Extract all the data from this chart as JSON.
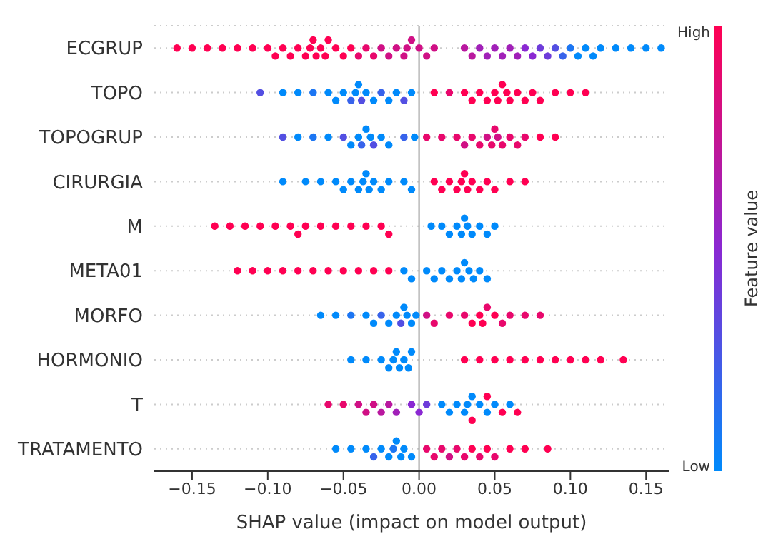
{
  "chart_data": {
    "type": "scatter",
    "orientation": "horizontal",
    "xlabel": "SHAP value (impact on model output)",
    "clabel": "Feature value",
    "annotations": [
      "High",
      "Low"
    ],
    "categories": [
      "ECGRUP",
      "TOPO",
      "TOPOGRUP",
      "CIRURGIA",
      "M",
      "META01",
      "MORFO",
      "HORMONIO",
      "T",
      "TRATAMENTO"
    ],
    "xlim": [
      -0.175,
      0.165
    ],
    "xticks": [
      {
        "value": -0.15,
        "label": "−0.15"
      },
      {
        "value": -0.1,
        "label": "−0.10"
      },
      {
        "value": -0.05,
        "label": "−0.05"
      },
      {
        "value": 0,
        "label": "0.00"
      },
      {
        "value": 0.05,
        "label": "0.05"
      },
      {
        "value": 0.1,
        "label": "0.10"
      },
      {
        "value": 0.15,
        "label": "0.15"
      }
    ],
    "grid": "y",
    "marker": "circle",
    "ref_lines": [
      {
        "axis": "x",
        "value": 0,
        "color": "#999999"
      }
    ],
    "series": [
      {
        "x": [
          "ECGRUP",
          "ECGRUP",
          "ECGRUP",
          "ECGRUP",
          "ECGRUP",
          "ECGRUP",
          "ECGRUP",
          "ECGRUP",
          "ECGRUP",
          "ECGRUP",
          "ECGRUP",
          "ECGRUP",
          "ECGRUP",
          "ECGRUP",
          "ECGRUP",
          "ECGRUP",
          "ECGRUP",
          "ECGRUP",
          "ECGRUP",
          "ECGRUP",
          "ECGRUP",
          "ECGRUP",
          "ECGRUP",
          "ECGRUP",
          "ECGRUP",
          "ECGRUP",
          "ECGRUP",
          "ECGRUP",
          "ECGRUP",
          "ECGRUP",
          "ECGRUP",
          "ECGRUP",
          "ECGRUP",
          "ECGRUP",
          "ECGRUP",
          "ECGRUP",
          "ECGRUP",
          "ECGRUP",
          "ECGRUP",
          "ECGRUP",
          "ECGRUP",
          "ECGRUP",
          "ECGRUP",
          "ECGRUP",
          "ECGRUP",
          "ECGRUP",
          "ECGRUP",
          "ECGRUP",
          "ECGRUP",
          "ECGRUP",
          "ECGRUP",
          "ECGRUP",
          "ECGRUP",
          "ECGRUP",
          "ECGRUP",
          "ECGRUP"
        ],
        "values": [
          -0.16,
          -0.15,
          -0.14,
          -0.13,
          -0.12,
          -0.11,
          -0.1,
          -0.095,
          -0.09,
          -0.085,
          -0.08,
          -0.075,
          -0.072,
          -0.07,
          -0.068,
          -0.065,
          -0.062,
          -0.06,
          -0.055,
          -0.05,
          -0.045,
          -0.04,
          -0.035,
          -0.03,
          -0.025,
          -0.02,
          -0.015,
          -0.01,
          -0.008,
          -0.005,
          0,
          0.005,
          0.01,
          0.03,
          0.035,
          0.04,
          0.045,
          0.05,
          0.055,
          0.06,
          0.065,
          0.07,
          0.075,
          0.08,
          0.085,
          0.09,
          0.095,
          0.1,
          0.105,
          0.11,
          0.115,
          0.12,
          0.13,
          0.14,
          0.15,
          0.16
        ],
        "colors": [
          "#ff0052",
          "#ff0052",
          "#ff0052",
          "#ff0052",
          "#ff0052",
          "#ff0052",
          "#ff0052",
          "#ff0052",
          "#ff0052",
          "#ff0052",
          "#ff0052",
          "#ff0052",
          "#ff0052",
          "#ff0052",
          "#ff0052",
          "#ff0052",
          "#ff0052",
          "#ff0052",
          "#ff0052",
          "#ff0052",
          "#ff0052",
          "#e8086c",
          "#e8086c",
          "#e8086c",
          "#d01085",
          "#d01085",
          "#d01085",
          "#d01085",
          "#d01085",
          "#d01085",
          "#d01085",
          "#d01085",
          "#d01085",
          "#b9189f",
          "#b9189f",
          "#a120b8",
          "#a120b8",
          "#a120b8",
          "#a120b8",
          "#a120b8",
          "#a120b8",
          "#8a28d2",
          "#8a28d2",
          "#6e3cda",
          "#6e3cda",
          "#534fe2",
          "#3763eb",
          "#1c76f3",
          "#008afb",
          "#008afb",
          "#008afb",
          "#008afb",
          "#008afb",
          "#008afb",
          "#008afb",
          "#008afb"
        ]
      },
      {
        "x": [
          "TOPO",
          "TOPO",
          "TOPO",
          "TOPO",
          "TOPO",
          "TOPO",
          "TOPO",
          "TOPO",
          "TOPO",
          "TOPO",
          "TOPO",
          "TOPO",
          "TOPO",
          "TOPO",
          "TOPO",
          "TOPO",
          "TOPO",
          "TOPO",
          "TOPO",
          "TOPO",
          "TOPO",
          "TOPO",
          "TOPO",
          "TOPO",
          "TOPO",
          "TOPO",
          "TOPO",
          "TOPO",
          "TOPO",
          "TOPO",
          "TOPO",
          "TOPO",
          "TOPO",
          "TOPO",
          "TOPO",
          "TOPO"
        ],
        "values": [
          -0.105,
          -0.09,
          -0.08,
          -0.07,
          -0.06,
          -0.055,
          -0.05,
          -0.045,
          -0.042,
          -0.04,
          -0.038,
          -0.035,
          -0.03,
          -0.025,
          -0.02,
          -0.015,
          -0.01,
          -0.005,
          0.01,
          0.02,
          0.03,
          0.035,
          0.04,
          0.045,
          0.05,
          0.052,
          0.055,
          0.058,
          0.06,
          0.065,
          0.07,
          0.075,
          0.08,
          0.09,
          0.1,
          0.11
        ],
        "colors": [
          "#534fe2",
          "#008afb",
          "#008afb",
          "#1c76f3",
          "#008afb",
          "#008afb",
          "#008afb",
          "#3763eb",
          "#008afb",
          "#008afb",
          "#534fe2",
          "#008afb",
          "#008afb",
          "#3763eb",
          "#008afb",
          "#008afb",
          "#534fe2",
          "#008afb",
          "#ff0052",
          "#e8086c",
          "#ff0052",
          "#ff0052",
          "#ff0052",
          "#ff0052",
          "#ff0052",
          "#ff0052",
          "#ff0052",
          "#ff0052",
          "#ff0052",
          "#ff0052",
          "#ff0052",
          "#ff0052",
          "#ff0052",
          "#ff0052",
          "#ff0052",
          "#ff0052"
        ]
      },
      {
        "x": [
          "TOPOGRUP",
          "TOPOGRUP",
          "TOPOGRUP",
          "TOPOGRUP",
          "TOPOGRUP",
          "TOPOGRUP",
          "TOPOGRUP",
          "TOPOGRUP",
          "TOPOGRUP",
          "TOPOGRUP",
          "TOPOGRUP",
          "TOPOGRUP",
          "TOPOGRUP",
          "TOPOGRUP",
          "TOPOGRUP",
          "TOPOGRUP",
          "TOPOGRUP",
          "TOPOGRUP",
          "TOPOGRUP",
          "TOPOGRUP",
          "TOPOGRUP",
          "TOPOGRUP",
          "TOPOGRUP",
          "TOPOGRUP",
          "TOPOGRUP",
          "TOPOGRUP",
          "TOPOGRUP",
          "TOPOGRUP",
          "TOPOGRUP",
          "TOPOGRUP",
          "TOPOGRUP"
        ],
        "values": [
          -0.09,
          -0.08,
          -0.07,
          -0.06,
          -0.05,
          -0.045,
          -0.04,
          -0.038,
          -0.035,
          -0.032,
          -0.03,
          -0.025,
          -0.02,
          -0.01,
          -0.003,
          0.005,
          0.015,
          0.025,
          0.03,
          0.035,
          0.04,
          0.045,
          0.048,
          0.05,
          0.052,
          0.055,
          0.06,
          0.065,
          0.07,
          0.08,
          0.09
        ],
        "colors": [
          "#534fe2",
          "#008afb",
          "#1c76f3",
          "#008afb",
          "#534fe2",
          "#008afb",
          "#008afb",
          "#3763eb",
          "#008afb",
          "#008afb",
          "#534fe2",
          "#008afb",
          "#008afb",
          "#3763eb",
          "#008afb",
          "#e8086c",
          "#e8086c",
          "#e8086c",
          "#d01085",
          "#e8086c",
          "#e8086c",
          "#d01085",
          "#e8086c",
          "#e8086c",
          "#d01085",
          "#e8086c",
          "#e8086c",
          "#e8086c",
          "#e8086c",
          "#ff0052",
          "#ff0052"
        ]
      },
      {
        "x": [
          "CIRURGIA",
          "CIRURGIA",
          "CIRURGIA",
          "CIRURGIA",
          "CIRURGIA",
          "CIRURGIA",
          "CIRURGIA",
          "CIRURGIA",
          "CIRURGIA",
          "CIRURGIA",
          "CIRURGIA",
          "CIRURGIA",
          "CIRURGIA",
          "CIRURGIA",
          "CIRURGIA",
          "CIRURGIA",
          "CIRURGIA",
          "CIRURGIA",
          "CIRURGIA",
          "CIRURGIA",
          "CIRURGIA",
          "CIRURGIA",
          "CIRURGIA",
          "CIRURGIA",
          "CIRURGIA",
          "CIRURGIA",
          "CIRURGIA",
          "CIRURGIA"
        ],
        "values": [
          -0.09,
          -0.075,
          -0.065,
          -0.055,
          -0.05,
          -0.045,
          -0.04,
          -0.037,
          -0.035,
          -0.033,
          -0.03,
          -0.025,
          -0.02,
          -0.01,
          -0.005,
          0.01,
          0.015,
          0.02,
          0.025,
          0.028,
          0.03,
          0.032,
          0.035,
          0.04,
          0.045,
          0.05,
          0.06,
          0.07
        ],
        "colors": [
          "#008afb",
          "#008afb",
          "#008afb",
          "#008afb",
          "#008afb",
          "#008afb",
          "#008afb",
          "#008afb",
          "#008afb",
          "#008afb",
          "#008afb",
          "#008afb",
          "#008afb",
          "#008afb",
          "#008afb",
          "#ff0052",
          "#ff0052",
          "#ff0052",
          "#ff0052",
          "#ff0052",
          "#ff0052",
          "#ff0052",
          "#ff0052",
          "#ff0052",
          "#ff0052",
          "#ff0052",
          "#ff0052",
          "#ff0052"
        ]
      },
      {
        "x": [
          "M",
          "M",
          "M",
          "M",
          "M",
          "M",
          "M",
          "M",
          "M",
          "M",
          "M",
          "M",
          "M",
          "M",
          "M",
          "M",
          "M",
          "M",
          "M",
          "M",
          "M",
          "M",
          "M",
          "M",
          "M"
        ],
        "values": [
          -0.135,
          -0.125,
          -0.115,
          -0.105,
          -0.095,
          -0.085,
          -0.08,
          -0.075,
          -0.065,
          -0.055,
          -0.045,
          -0.035,
          -0.025,
          -0.02,
          0.008,
          0.015,
          0.02,
          0.025,
          0.028,
          0.03,
          0.032,
          0.035,
          0.04,
          0.045,
          0.05
        ],
        "colors": [
          "#ff0052",
          "#ff0052",
          "#ff0052",
          "#ff0052",
          "#ff0052",
          "#ff0052",
          "#ff0052",
          "#ff0052",
          "#ff0052",
          "#ff0052",
          "#ff0052",
          "#ff0052",
          "#ff0052",
          "#ff0052",
          "#008afb",
          "#008afb",
          "#008afb",
          "#008afb",
          "#008afb",
          "#008afb",
          "#008afb",
          "#008afb",
          "#008afb",
          "#008afb",
          "#008afb"
        ]
      },
      {
        "x": [
          "META01",
          "META01",
          "META01",
          "META01",
          "META01",
          "META01",
          "META01",
          "META01",
          "META01",
          "META01",
          "META01",
          "META01",
          "META01",
          "META01",
          "META01",
          "META01",
          "META01",
          "META01",
          "META01",
          "META01",
          "META01",
          "META01",
          "META01",
          "META01"
        ],
        "values": [
          -0.12,
          -0.11,
          -0.1,
          -0.09,
          -0.08,
          -0.07,
          -0.06,
          -0.05,
          -0.04,
          -0.03,
          -0.02,
          -0.01,
          -0.005,
          0.005,
          0.01,
          0.015,
          0.02,
          0.025,
          0.028,
          0.03,
          0.033,
          0.036,
          0.04,
          0.045
        ],
        "colors": [
          "#ff0052",
          "#ff0052",
          "#ff0052",
          "#ff0052",
          "#ff0052",
          "#ff0052",
          "#ff0052",
          "#ff0052",
          "#ff0052",
          "#ff0052",
          "#ff0052",
          "#008afb",
          "#008afb",
          "#008afb",
          "#008afb",
          "#008afb",
          "#008afb",
          "#008afb",
          "#008afb",
          "#008afb",
          "#008afb",
          "#008afb",
          "#008afb",
          "#008afb"
        ]
      },
      {
        "x": [
          "MORFO",
          "MORFO",
          "MORFO",
          "MORFO",
          "MORFO",
          "MORFO",
          "MORFO",
          "MORFO",
          "MORFO",
          "MORFO",
          "MORFO",
          "MORFO",
          "MORFO",
          "MORFO",
          "MORFO",
          "MORFO",
          "MORFO",
          "MORFO",
          "MORFO",
          "MORFO",
          "MORFO",
          "MORFO",
          "MORFO",
          "MORFO",
          "MORFO",
          "MORFO"
        ],
        "values": [
          -0.065,
          -0.055,
          -0.045,
          -0.035,
          -0.03,
          -0.025,
          -0.02,
          -0.015,
          -0.012,
          -0.01,
          -0.008,
          -0.005,
          -0.002,
          0.005,
          0.01,
          0.02,
          0.03,
          0.035,
          0.04,
          0.042,
          0.045,
          0.05,
          0.055,
          0.06,
          0.07,
          0.08
        ],
        "colors": [
          "#008afb",
          "#008afb",
          "#1c76f3",
          "#008afb",
          "#008afb",
          "#3763eb",
          "#008afb",
          "#008afb",
          "#534fe2",
          "#008afb",
          "#008afb",
          "#008afb",
          "#008afb",
          "#d01085",
          "#e8086c",
          "#e8086c",
          "#e8086c",
          "#ff0052",
          "#ff0052",
          "#ff0052",
          "#e8086c",
          "#ff0052",
          "#e8086c",
          "#e8086c",
          "#e8086c",
          "#e8086c"
        ]
      },
      {
        "x": [
          "HORMONIO",
          "HORMONIO",
          "HORMONIO",
          "HORMONIO",
          "HORMONIO",
          "HORMONIO",
          "HORMONIO",
          "HORMONIO",
          "HORMONIO",
          "HORMONIO",
          "HORMONIO",
          "HORMONIO",
          "HORMONIO",
          "HORMONIO",
          "HORMONIO",
          "HORMONIO",
          "HORMONIO",
          "HORMONIO",
          "HORMONIO",
          "HORMONIO",
          "HORMONIO"
        ],
        "values": [
          -0.045,
          -0.035,
          -0.025,
          -0.02,
          -0.017,
          -0.015,
          -0.013,
          -0.01,
          -0.007,
          -0.005,
          0.03,
          0.04,
          0.05,
          0.06,
          0.07,
          0.08,
          0.09,
          0.1,
          0.11,
          0.12,
          0.135
        ],
        "colors": [
          "#008afb",
          "#008afb",
          "#008afb",
          "#008afb",
          "#008afb",
          "#008afb",
          "#008afb",
          "#008afb",
          "#008afb",
          "#008afb",
          "#ff0052",
          "#ff0052",
          "#ff0052",
          "#ff0052",
          "#ff0052",
          "#ff0052",
          "#ff0052",
          "#ff0052",
          "#ff0052",
          "#ff0052",
          "#ff0052"
        ]
      },
      {
        "x": [
          "T",
          "T",
          "T",
          "T",
          "T",
          "T",
          "T",
          "T",
          "T",
          "T",
          "T",
          "T",
          "T",
          "T",
          "T",
          "T",
          "T",
          "T",
          "T",
          "T",
          "T",
          "T",
          "T",
          "T",
          "T"
        ],
        "values": [
          -0.06,
          -0.05,
          -0.04,
          -0.035,
          -0.03,
          -0.025,
          -0.02,
          -0.015,
          -0.005,
          0,
          0.005,
          0.015,
          0.02,
          0.025,
          0.03,
          0.032,
          0.035,
          0.04,
          0.045,
          0.05,
          0.06,
          0.035,
          0.045,
          0.055,
          0.065
        ],
        "colors": [
          "#e8086c",
          "#e8086c",
          "#d01085",
          "#d01085",
          "#d01085",
          "#b9189f",
          "#b9189f",
          "#a120b8",
          "#8a28d2",
          "#8a28d2",
          "#6e3cda",
          "#008afb",
          "#008afb",
          "#008afb",
          "#008afb",
          "#008afb",
          "#008afb",
          "#008afb",
          "#008afb",
          "#008afb",
          "#008afb",
          "#ff0052",
          "#ff0052",
          "#ff0052",
          "#ff0052"
        ]
      },
      {
        "x": [
          "TRATAMENTO",
          "TRATAMENTO",
          "TRATAMENTO",
          "TRATAMENTO",
          "TRATAMENTO",
          "TRATAMENTO",
          "TRATAMENTO",
          "TRATAMENTO",
          "TRATAMENTO",
          "TRATAMENTO",
          "TRATAMENTO",
          "TRATAMENTO",
          "TRATAMENTO",
          "TRATAMENTO",
          "TRATAMENTO",
          "TRATAMENTO",
          "TRATAMENTO",
          "TRATAMENTO",
          "TRATAMENTO",
          "TRATAMENTO",
          "TRATAMENTO",
          "TRATAMENTO",
          "TRATAMENTO",
          "TRATAMENTO"
        ],
        "values": [
          -0.055,
          -0.045,
          -0.035,
          -0.03,
          -0.025,
          -0.02,
          -0.017,
          -0.015,
          -0.012,
          -0.01,
          -0.005,
          0.005,
          0.01,
          0.015,
          0.02,
          0.025,
          0.03,
          0.035,
          0.04,
          0.045,
          0.05,
          0.06,
          0.07,
          0.085
        ],
        "colors": [
          "#008afb",
          "#008afb",
          "#008afb",
          "#3763eb",
          "#008afb",
          "#008afb",
          "#1c76f3",
          "#008afb",
          "#008afb",
          "#008afb",
          "#008afb",
          "#e8086c",
          "#e8086c",
          "#e8086c",
          "#d01085",
          "#e8086c",
          "#e8086c",
          "#ff0052",
          "#e8086c",
          "#ff0052",
          "#e8086c",
          "#ff0052",
          "#ff0052",
          "#ff0052"
        ]
      }
    ]
  }
}
